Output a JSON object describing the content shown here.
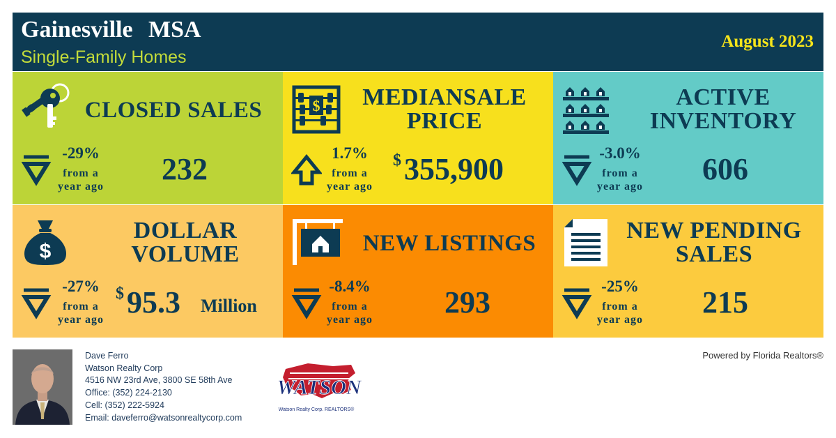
{
  "header": {
    "city": "Gainesville MSA",
    "subtitle": "Single-Family Homes",
    "month": "August 2023"
  },
  "colors": {
    "navy": "#0d3b53",
    "lime": "#bcd437",
    "yellow": "#f7e01d",
    "teal": "#63cbc7",
    "light_orange": "#fcc962",
    "orange": "#fb8b02",
    "gold": "#fccb3e"
  },
  "tiles": [
    {
      "title": "CLOSED SALES",
      "pct": "-29%",
      "caption_line1": "from a",
      "caption_line2": "year ago",
      "value": "232",
      "currency": "",
      "unit": "",
      "direction": "down",
      "icon": "keys-icon"
    },
    {
      "title_line1": "MEDIANSALE",
      "title_line2": "PRICE",
      "pct": "1.7%",
      "caption_line1": "from a",
      "caption_line2": "year ago",
      "value": "355,900",
      "currency": "$",
      "unit": "",
      "direction": "up",
      "icon": "abacus-icon"
    },
    {
      "title_line1": "ACTIVE",
      "title_line2": "INVENTORY",
      "pct": "-3.0%",
      "caption_line1": "from a",
      "caption_line2": "year ago",
      "value": "606",
      "currency": "",
      "unit": "",
      "direction": "down",
      "icon": "houses-rows-icon"
    },
    {
      "title_line1": "DOLLAR",
      "title_line2": "VOLUME",
      "pct": "-27%",
      "caption_line1": "from a",
      "caption_line2": "year ago",
      "value": "95.3",
      "currency": "$",
      "unit": "Million",
      "direction": "down",
      "icon": "money-bag-icon"
    },
    {
      "title": "NEW LISTINGS",
      "pct": "-8.4%",
      "caption_line1": "from a",
      "caption_line2": "year ago",
      "value": "293",
      "currency": "",
      "unit": "",
      "direction": "down",
      "icon": "house-sign-icon"
    },
    {
      "title_line1": "NEW PENDING",
      "title_line2": "SALES",
      "pct": "-25%",
      "caption_line1": "from a",
      "caption_line2": "year ago",
      "value": "215",
      "currency": "",
      "unit": "",
      "direction": "down",
      "icon": "document-icon"
    }
  ],
  "agent": {
    "name": "Dave Ferro",
    "company": "Watson Realty Corp",
    "address": "4516 NW 23rd Ave, 3800 SE 58th Ave",
    "office": "Office: (352) 224-2130",
    "cell": "Cell: (352) 222-5924",
    "email": "Email: daveferro@watsonrealtycorp.com"
  },
  "logo": {
    "wordmark": "WATSON",
    "tagline": "Watson Realty Corp. REALTORS®"
  },
  "powered_by": "Powered by Florida Realtors®"
}
